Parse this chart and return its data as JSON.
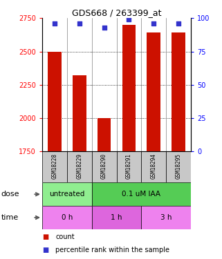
{
  "title": "GDS668 / 263399_at",
  "samples": [
    "GSM18228",
    "GSM18229",
    "GSM18290",
    "GSM18291",
    "GSM18294",
    "GSM18295"
  ],
  "bar_values": [
    2500,
    2320,
    2000,
    2700,
    2640,
    2640
  ],
  "dot_values": [
    96,
    96,
    93,
    99,
    96,
    96
  ],
  "bar_color": "#cc1100",
  "dot_color": "#3333cc",
  "ylim_left": [
    1750,
    2750
  ],
  "ylim_right": [
    0,
    100
  ],
  "yticks_left": [
    1750,
    2000,
    2250,
    2500,
    2750
  ],
  "yticks_right": [
    0,
    25,
    50,
    75,
    100
  ],
  "grid_values": [
    2000,
    2250,
    2500
  ],
  "dose_labels": [
    {
      "text": "untreated",
      "span": [
        0,
        2
      ],
      "color": "#90ee90"
    },
    {
      "text": "0.1 uM IAA",
      "span": [
        2,
        6
      ],
      "color": "#55cc55"
    }
  ],
  "time_labels": [
    {
      "text": "0 h",
      "span": [
        0,
        2
      ],
      "color": "#ee82ee"
    },
    {
      "text": "1 h",
      "span": [
        2,
        4
      ],
      "color": "#dd66dd"
    },
    {
      "text": "3 h",
      "span": [
        4,
        6
      ],
      "color": "#ee82ee"
    }
  ],
  "dose_arrow_label": "dose",
  "time_arrow_label": "time",
  "legend_count_color": "#cc1100",
  "legend_dot_color": "#3333cc",
  "legend_count_label": "count",
  "legend_dot_label": "percentile rank within the sample",
  "bar_width": 0.55,
  "sample_bg_color": "#c8c8c8",
  "title_fontsize": 9
}
